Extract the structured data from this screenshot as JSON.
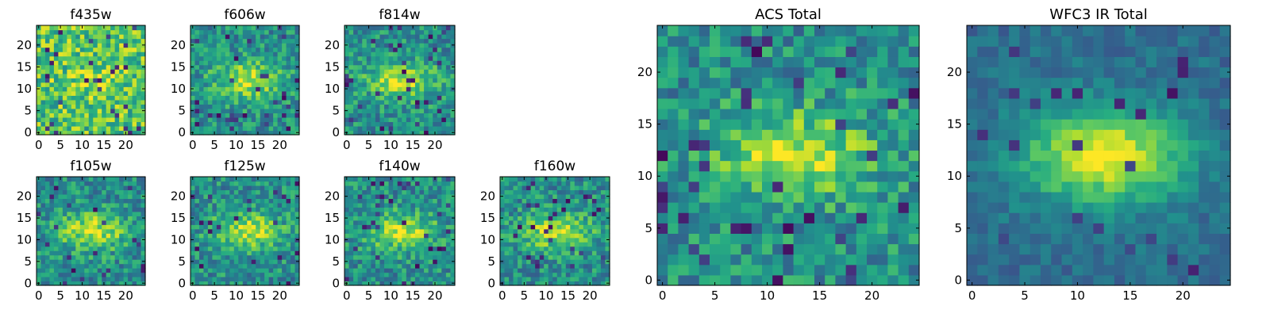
{
  "chart_data": [
    {
      "type": "heatmap",
      "title": "f435w",
      "xlim": [
        0,
        24
      ],
      "ylim": [
        0,
        24
      ],
      "xticks": [
        "0",
        "5",
        "10",
        "15",
        "20"
      ],
      "yticks": [
        "0",
        "5",
        "10",
        "15",
        "20"
      ],
      "colormap": "viridis",
      "pattern": "noise-bright"
    },
    {
      "type": "heatmap",
      "title": "f606w",
      "xlim": [
        0,
        24
      ],
      "ylim": [
        0,
        24
      ],
      "xticks": [
        "0",
        "5",
        "10",
        "15",
        "20"
      ],
      "yticks": [
        "0",
        "5",
        "10",
        "15",
        "20"
      ],
      "colormap": "viridis",
      "pattern": "blob"
    },
    {
      "type": "heatmap",
      "title": "f814w",
      "xlim": [
        0,
        24
      ],
      "ylim": [
        0,
        24
      ],
      "xticks": [
        "0",
        "5",
        "10",
        "15",
        "20"
      ],
      "yticks": [
        "0",
        "5",
        "10",
        "15",
        "20"
      ],
      "colormap": "viridis",
      "pattern": "blob"
    },
    {
      "type": "heatmap",
      "title": "f105w",
      "xlim": [
        0,
        24
      ],
      "ylim": [
        0,
        24
      ],
      "xticks": [
        "0",
        "5",
        "10",
        "15",
        "20"
      ],
      "yticks": [
        "0",
        "5",
        "10",
        "15",
        "20"
      ],
      "colormap": "viridis",
      "pattern": "blob"
    },
    {
      "type": "heatmap",
      "title": "f125w",
      "xlim": [
        0,
        24
      ],
      "ylim": [
        0,
        24
      ],
      "xticks": [
        "0",
        "5",
        "10",
        "15",
        "20"
      ],
      "yticks": [
        "0",
        "5",
        "10",
        "15",
        "20"
      ],
      "colormap": "viridis",
      "pattern": "blob"
    },
    {
      "type": "heatmap",
      "title": "f140w",
      "xlim": [
        0,
        24
      ],
      "ylim": [
        0,
        24
      ],
      "xticks": [
        "0",
        "5",
        "10",
        "15",
        "20"
      ],
      "yticks": [
        "0",
        "5",
        "10",
        "15",
        "20"
      ],
      "colormap": "viridis",
      "pattern": "blob"
    },
    {
      "type": "heatmap",
      "title": "f160w",
      "xlim": [
        0,
        24
      ],
      "ylim": [
        0,
        24
      ],
      "xticks": [
        "0",
        "5",
        "10",
        "15",
        "20"
      ],
      "yticks": [
        "0",
        "5",
        "10",
        "15",
        "20"
      ],
      "colormap": "viridis",
      "pattern": "blob"
    },
    {
      "type": "heatmap",
      "title": "ACS Total",
      "xlim": [
        0,
        24
      ],
      "ylim": [
        0,
        24
      ],
      "xticks": [
        "0",
        "5",
        "10",
        "15",
        "20"
      ],
      "yticks": [
        "0",
        "5",
        "10",
        "15",
        "20"
      ],
      "colormap": "viridis",
      "pattern": "blob"
    },
    {
      "type": "heatmap",
      "title": "WFC3 IR Total",
      "xlim": [
        0,
        24
      ],
      "ylim": [
        0,
        24
      ],
      "xticks": [
        "0",
        "5",
        "10",
        "15",
        "20"
      ],
      "yticks": [
        "0",
        "5",
        "10",
        "15",
        "20"
      ],
      "colormap": "viridis",
      "pattern": "smooth-blob"
    }
  ]
}
